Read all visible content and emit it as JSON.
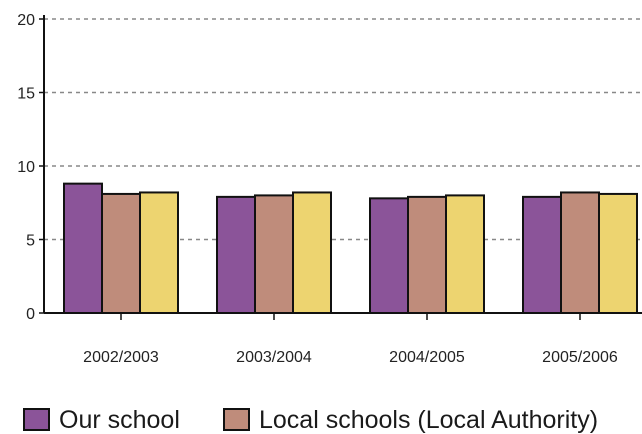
{
  "chart_data": {
    "type": "bar",
    "categories": [
      "2002/2003",
      "2003/2004",
      "2004/2005",
      "2005/2006"
    ],
    "series": [
      {
        "name": "Our school",
        "values": [
          8.8,
          7.9,
          7.8,
          7.9
        ],
        "color": "#8B5499"
      },
      {
        "name": "Local schools (Local Authority)",
        "values": [
          8.1,
          8.0,
          7.9,
          8.2
        ],
        "color": "#BF8C7B"
      },
      {
        "name": "",
        "values": [
          8.2,
          8.2,
          8.0,
          8.1
        ],
        "color": "#EDD470"
      }
    ],
    "title": "",
    "xlabel": "",
    "ylabel": "",
    "ylim": [
      0,
      20
    ],
    "yticks": [
      "0",
      "5",
      "10",
      "15",
      "20"
    ],
    "grid": true,
    "legend_position": "bottom"
  }
}
